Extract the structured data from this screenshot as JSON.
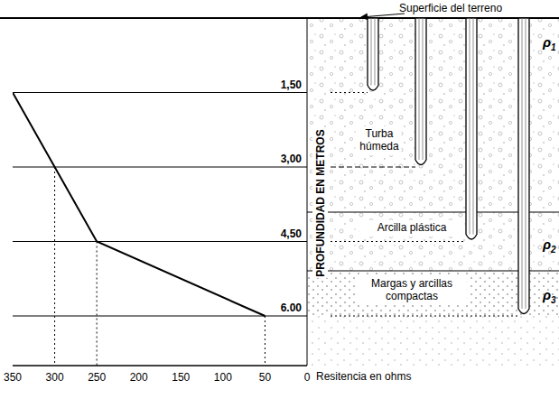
{
  "chart_data": {
    "type": "line",
    "x_label": "Resitencia en ohms",
    "y_label": "PROFUNDIDAD EN METROS",
    "x": [
      350,
      300,
      250,
      50
    ],
    "values": [
      1.5,
      3,
      4.5,
      6
    ],
    "color": "#000000",
    "xlim": [
      350,
      0
    ],
    "xticks": [
      350,
      300,
      250,
      200,
      150,
      100,
      50,
      0
    ],
    "ylim": [
      7,
      0
    ],
    "yticks": [
      {
        "value": 1.5,
        "label": "1,50"
      },
      {
        "value": 3,
        "label": "3,00"
      },
      {
        "value": 4.5,
        "label": "4,50"
      },
      {
        "value": 6,
        "label": "6.00"
      }
    ],
    "grid": true
  },
  "diagram": {
    "annotation": "Superficie del terreno",
    "layers": [
      {
        "label": "Turba húmeda",
        "symbol": "ρ1"
      },
      {
        "label": "Arcilla plástica",
        "symbol": "ρ2"
      },
      {
        "label": "Margas y arcillas compactas",
        "symbol": "ρ3"
      }
    ]
  }
}
